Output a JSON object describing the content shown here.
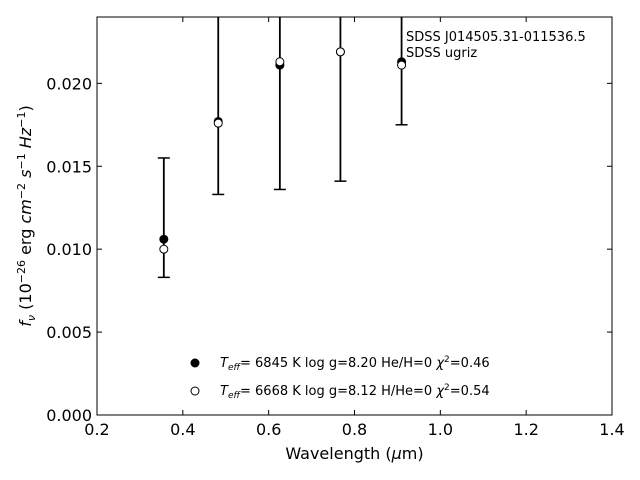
{
  "chart_data": {
    "type": "scatter",
    "title": "",
    "annotation_lines": [
      "SDSS J014505.31-011536.5",
      "SDSS ugriz"
    ],
    "xlabel": "Wavelength (μm)",
    "ylabel": "f_ν (10^-26 erg cm^-2 s^-1 Hz^-1)",
    "xlim": [
      0.2,
      1.4
    ],
    "ylim": [
      0.0,
      0.024
    ],
    "x_ticks": [
      0.2,
      0.4,
      0.6,
      0.8,
      1.0,
      1.2,
      1.4
    ],
    "x_tick_labels": [
      "0.2",
      "0.4",
      "0.6",
      "0.8",
      "1.0",
      "1.2",
      "1.4"
    ],
    "y_ticks": [
      0.0,
      0.005,
      0.01,
      0.015,
      0.02
    ],
    "y_tick_labels": [
      "0.000",
      "0.005",
      "0.010",
      "0.015",
      "0.020"
    ],
    "observed": {
      "x": [
        0.3557,
        0.4825,
        0.6261,
        0.7672,
        0.9097
      ],
      "y": [
        0.0106,
        0.0177,
        0.0211,
        0.0219,
        0.0213
      ],
      "yerr_low": [
        0.0083,
        0.0133,
        0.0136,
        0.0141,
        0.0175
      ],
      "yerr_high": [
        0.0155,
        0.024,
        0.024,
        0.024,
        0.024
      ]
    },
    "series": [
      {
        "name": "H model",
        "marker": "filled-circle",
        "label_teff": "6845 K",
        "label_logg": "log g=8.20",
        "label_comp": "He/H=0",
        "label_chi": "=0.46",
        "x": [
          0.3557,
          0.4825,
          0.6261,
          0.7672,
          0.9097
        ],
        "y": [
          0.0106,
          0.0177,
          0.0211,
          0.0219,
          0.0213
        ]
      },
      {
        "name": "He model",
        "marker": "open-circle",
        "label_teff": "6668 K",
        "label_logg": "log g=8.12",
        "label_comp": "H/He=0",
        "label_chi": "=0.54",
        "x": [
          0.3557,
          0.4825,
          0.6261,
          0.7672,
          0.9097
        ],
        "y": [
          0.01,
          0.0176,
          0.0213,
          0.0219,
          0.0211
        ]
      }
    ],
    "legend_location": "lower-center",
    "grid": false
  }
}
